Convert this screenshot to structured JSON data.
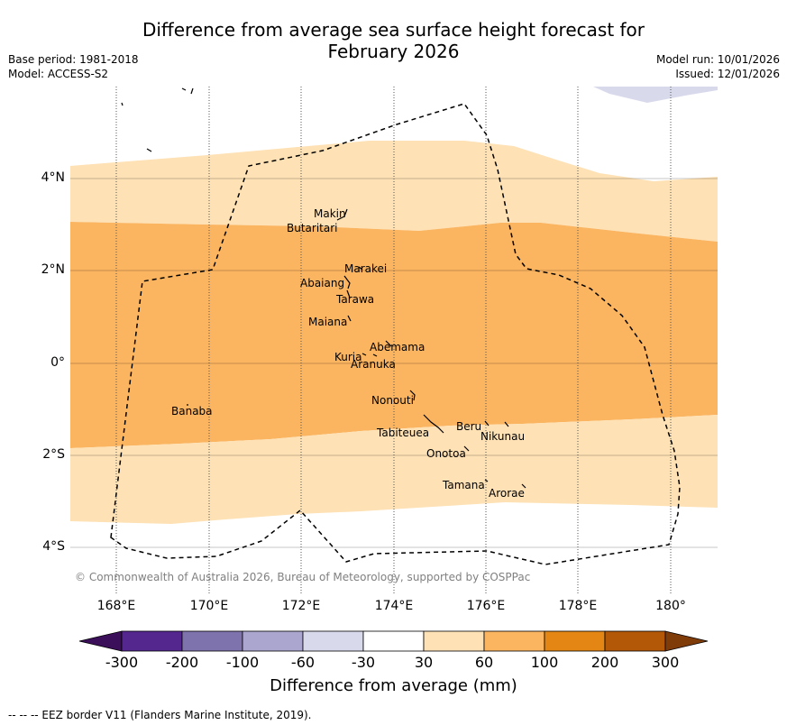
{
  "header": {
    "title_line1": "Difference from average sea surface height forecast for",
    "title_line2": "February 2026",
    "base_period": "Base period: 1981-2018",
    "model": "Model: ACCESS-S2",
    "model_run": "Model run: 10/01/2026",
    "issued": "Issued: 12/01/2026"
  },
  "map": {
    "lon_ticks": [
      "168°E",
      "170°E",
      "172°E",
      "174°E",
      "176°E",
      "178°E",
      "180°"
    ],
    "lat_ticks": [
      "4°N",
      "2°N",
      "0°",
      "2°S",
      "4°S"
    ],
    "islands": [
      {
        "name": "Makin"
      },
      {
        "name": "Butaritari"
      },
      {
        "name": "Marakei"
      },
      {
        "name": "Abaiang"
      },
      {
        "name": "Tarawa"
      },
      {
        "name": "Maiana"
      },
      {
        "name": "Abemama"
      },
      {
        "name": "Kuria"
      },
      {
        "name": "Aranuka"
      },
      {
        "name": "Banaba"
      },
      {
        "name": "Nonouti"
      },
      {
        "name": "Beru"
      },
      {
        "name": "Tabiteuea"
      },
      {
        "name": "Nikunau"
      },
      {
        "name": "Onotoa"
      },
      {
        "name": "Tamana"
      },
      {
        "name": "Arorae"
      }
    ],
    "copyright": "© Commonwealth of Australia 2026, Bureau of Meteorology, supported by COSPPac"
  },
  "colorbar": {
    "ticks": [
      "-300",
      "-200",
      "-100",
      "-60",
      "-30",
      "30",
      "60",
      "100",
      "200",
      "300"
    ],
    "colors": [
      "#3b0f5a",
      "#54278f",
      "#7f73ad",
      "#aba6d0",
      "#d9d9ec",
      "#ffffff",
      "#fee1b4",
      "#fbb561",
      "#e48613",
      "#b35806",
      "#7f3b08"
    ],
    "label": "Difference from average (mm)"
  },
  "footnote": "--  --  -- EEZ border V11 (Flanders Marine Institute, 2019)."
}
